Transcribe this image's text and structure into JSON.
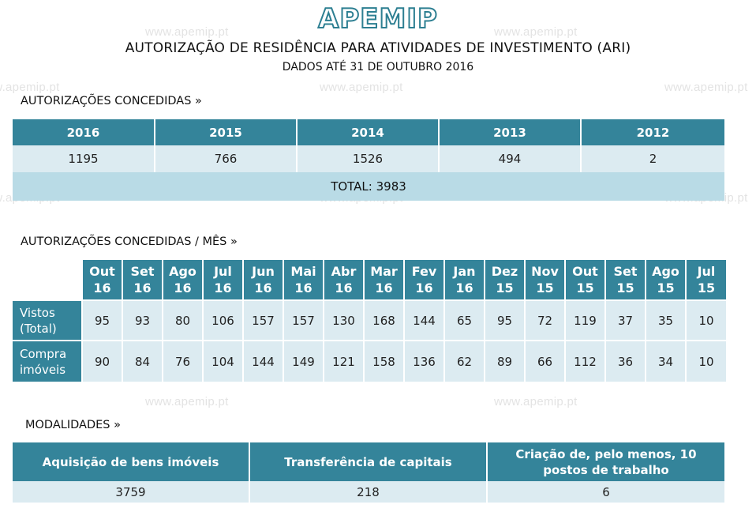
{
  "watermark": "www.apemip.pt",
  "logo": "APEMIP",
  "title": "AUTORIZAÇÃO DE RESIDÊNCIA PARA ATIVIDADES DE INVESTIMENTO (ARI)",
  "subtitle": "DADOS ATÉ 31 DE OUTUBRO 2016",
  "colors": {
    "header": "#34849a",
    "row": "#dcebf1",
    "total": "#b9dbe6",
    "logo_stroke": "#2d7f92"
  },
  "annual": {
    "heading": "AUTORIZAÇÕES CONCEDIDAS »",
    "years": [
      "2016",
      "2015",
      "2014",
      "2013",
      "2012"
    ],
    "values": [
      "1195",
      "766",
      "1526",
      "494",
      "2"
    ],
    "total": "TOTAL: 3983"
  },
  "monthly": {
    "heading": "AUTORIZAÇÕES CONCEDIDAS / MÊS »",
    "months": [
      {
        "m": "Out",
        "y": "16"
      },
      {
        "m": "Set",
        "y": "16"
      },
      {
        "m": "Ago",
        "y": "16"
      },
      {
        "m": "Jul",
        "y": "16"
      },
      {
        "m": "Jun",
        "y": "16"
      },
      {
        "m": "Mai",
        "y": "16"
      },
      {
        "m": "Abr",
        "y": "16"
      },
      {
        "m": "Mar",
        "y": "16"
      },
      {
        "m": "Fev",
        "y": "16"
      },
      {
        "m": "Jan",
        "y": "16"
      },
      {
        "m": "Dez",
        "y": "15"
      },
      {
        "m": "Nov",
        "y": "15"
      },
      {
        "m": "Out",
        "y": "15"
      },
      {
        "m": "Set",
        "y": "15"
      },
      {
        "m": "Ago",
        "y": "15"
      },
      {
        "m": "Jul",
        "y": "15"
      }
    ],
    "rows": [
      {
        "label_1": "Vistos",
        "label_2": "(Total)",
        "values": [
          "95",
          "93",
          "80",
          "106",
          "157",
          "157",
          "130",
          "168",
          "144",
          "65",
          "95",
          "72",
          "119",
          "37",
          "35",
          "10"
        ]
      },
      {
        "label_1": "Compra",
        "label_2": "imóveis",
        "values": [
          "90",
          "84",
          "76",
          "104",
          "144",
          "149",
          "121",
          "158",
          "136",
          "62",
          "89",
          "66",
          "112",
          "36",
          "34",
          "10"
        ]
      }
    ]
  },
  "modalities": {
    "heading": "MODALIDADES »",
    "columns": [
      "Aquisição de bens imóveis",
      "Transferência de capitais",
      "Criação de, pelo menos, 10 postos de trabalho"
    ],
    "values": [
      "3759",
      "218",
      "6"
    ]
  }
}
